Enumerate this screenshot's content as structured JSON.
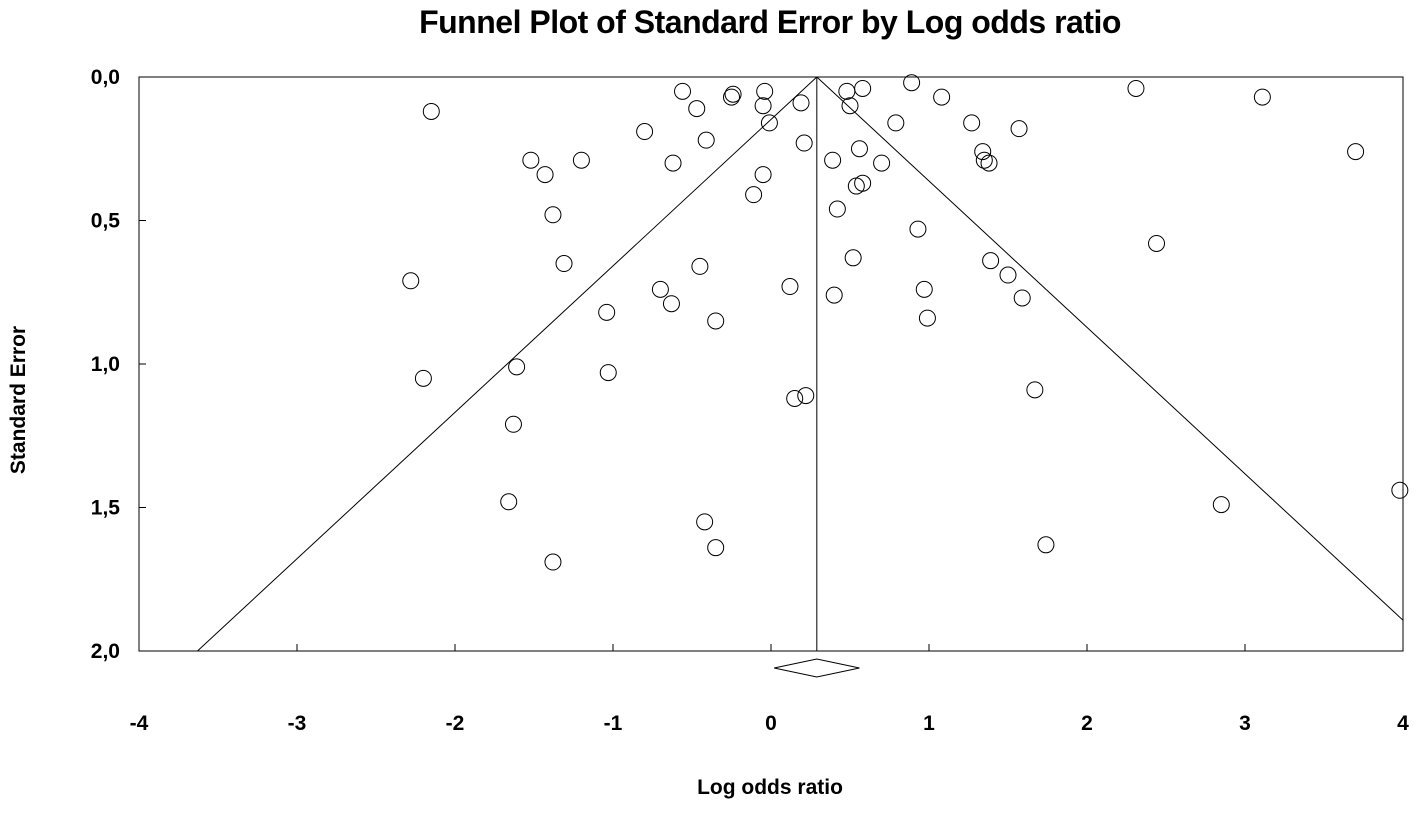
{
  "chart_data": {
    "type": "scatter",
    "title": "Funnel Plot of Standard Error by Log odds ratio",
    "xlabel": "Log odds ratio",
    "ylabel": "Standard Error",
    "xlim": [
      -4,
      4
    ],
    "ylim": [
      0,
      2
    ],
    "y_inverted": true,
    "x_ticks": [
      "-4",
      "-3",
      "-2",
      "-1",
      "0",
      "1",
      "2",
      "3",
      "4"
    ],
    "y_ticks": [
      "0,0",
      "0,5",
      "1,0",
      "1,5",
      "2,0"
    ],
    "grid": false,
    "legend": "none",
    "pooled_estimate": 0.29,
    "funnel_limit": 1.96,
    "summary_diamond": {
      "center": 0.29,
      "lower": 0.02,
      "upper": 0.56
    },
    "points": [
      {
        "x": -2.15,
        "y": 0.12
      },
      {
        "x": -2.28,
        "y": 0.71
      },
      {
        "x": -2.2,
        "y": 1.05
      },
      {
        "x": -1.52,
        "y": 0.29
      },
      {
        "x": -1.43,
        "y": 0.34
      },
      {
        "x": -1.38,
        "y": 0.48
      },
      {
        "x": -1.31,
        "y": 0.65
      },
      {
        "x": -1.2,
        "y": 0.29
      },
      {
        "x": -1.04,
        "y": 0.82
      },
      {
        "x": -1.03,
        "y": 1.03
      },
      {
        "x": -0.8,
        "y": 0.19
      },
      {
        "x": -0.62,
        "y": 0.3
      },
      {
        "x": -0.56,
        "y": 0.05
      },
      {
        "x": -0.47,
        "y": 0.11
      },
      {
        "x": -0.41,
        "y": 0.22
      },
      {
        "x": -0.25,
        "y": 0.07
      },
      {
        "x": -0.24,
        "y": 0.06
      },
      {
        "x": -0.45,
        "y": 0.66
      },
      {
        "x": -0.7,
        "y": 0.74
      },
      {
        "x": -0.63,
        "y": 0.79
      },
      {
        "x": -0.35,
        "y": 0.85
      },
      {
        "x": -0.04,
        "y": 0.05
      },
      {
        "x": -0.05,
        "y": 0.1
      },
      {
        "x": -0.01,
        "y": 0.16
      },
      {
        "x": -0.05,
        "y": 0.34
      },
      {
        "x": -0.11,
        "y": 0.41
      },
      {
        "x": 0.19,
        "y": 0.09
      },
      {
        "x": 0.21,
        "y": 0.23
      },
      {
        "x": 0.12,
        "y": 0.73
      },
      {
        "x": 0.48,
        "y": 0.05
      },
      {
        "x": 0.5,
        "y": 0.1
      },
      {
        "x": 0.58,
        "y": 0.04
      },
      {
        "x": 0.56,
        "y": 0.25
      },
      {
        "x": 0.39,
        "y": 0.29
      },
      {
        "x": 0.54,
        "y": 0.38
      },
      {
        "x": 0.58,
        "y": 0.37
      },
      {
        "x": 0.42,
        "y": 0.46
      },
      {
        "x": 0.52,
        "y": 0.63
      },
      {
        "x": 0.4,
        "y": 0.76
      },
      {
        "x": 0.7,
        "y": 0.3
      },
      {
        "x": 0.79,
        "y": 0.16
      },
      {
        "x": 0.89,
        "y": 0.02
      },
      {
        "x": 1.08,
        "y": 0.07
      },
      {
        "x": 0.93,
        "y": 0.53
      },
      {
        "x": 0.97,
        "y": 0.74
      },
      {
        "x": 0.99,
        "y": 0.84
      },
      {
        "x": 1.27,
        "y": 0.16
      },
      {
        "x": 1.34,
        "y": 0.26
      },
      {
        "x": 1.35,
        "y": 0.29
      },
      {
        "x": 1.38,
        "y": 0.3
      },
      {
        "x": 1.57,
        "y": 0.18
      },
      {
        "x": 1.39,
        "y": 0.64
      },
      {
        "x": 1.5,
        "y": 0.69
      },
      {
        "x": 1.59,
        "y": 0.77
      },
      {
        "x": 1.67,
        "y": 1.09
      },
      {
        "x": 2.31,
        "y": 0.04
      },
      {
        "x": 2.44,
        "y": 0.58
      },
      {
        "x": 3.11,
        "y": 0.07
      },
      {
        "x": 3.7,
        "y": 0.26
      },
      {
        "x": 2.85,
        "y": 1.49
      },
      {
        "x": 3.98,
        "y": 1.44
      },
      {
        "x": 1.74,
        "y": 1.63
      },
      {
        "x": -1.61,
        "y": 1.01
      },
      {
        "x": -1.63,
        "y": 1.21
      },
      {
        "x": -1.66,
        "y": 1.48
      },
      {
        "x": -1.38,
        "y": 1.69
      },
      {
        "x": -0.42,
        "y": 1.55
      },
      {
        "x": -0.35,
        "y": 1.64
      },
      {
        "x": 0.15,
        "y": 1.12
      },
      {
        "x": 0.22,
        "y": 1.11
      }
    ]
  }
}
